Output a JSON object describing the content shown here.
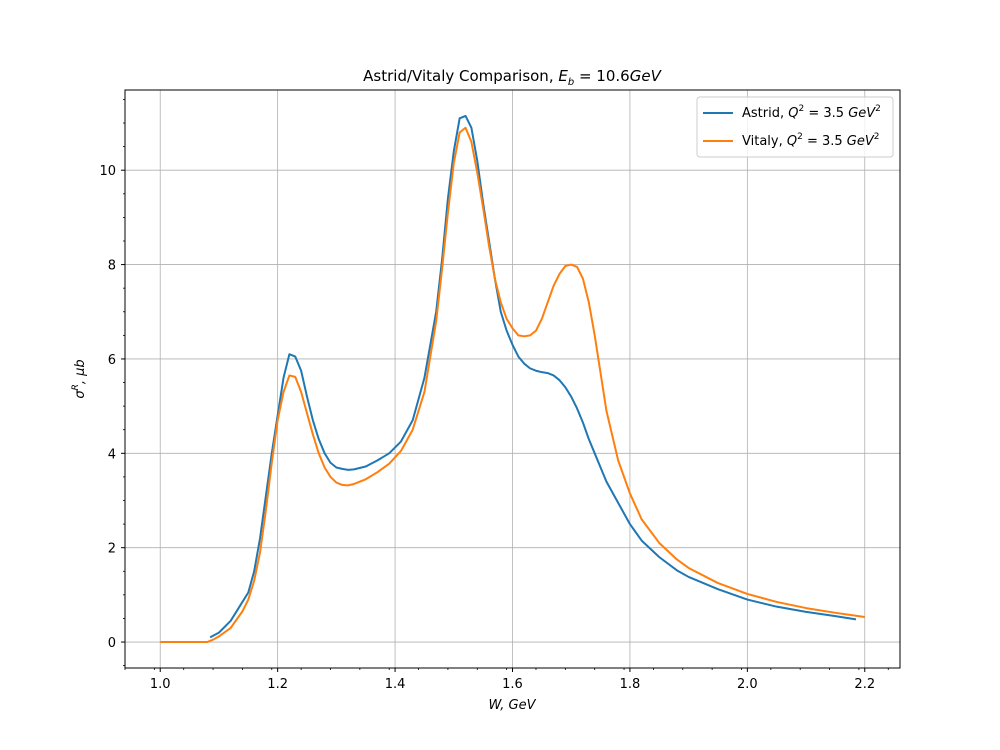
{
  "chart_data": {
    "type": "line",
    "title": "Astrid/Vitaly Comparison, E_b = 10.6GeV",
    "title_parts": {
      "prefix": "Astrid/Vitaly Comparison, ",
      "sym": "E",
      "sub": "b",
      "rest": " = 10.6",
      "unit": "GeV"
    },
    "xlabel": "W, GeV",
    "ylabel": "σ^R, μb",
    "xlim": [
      0.94,
      2.26
    ],
    "ylim": [
      -0.55,
      11.7
    ],
    "x_ticks": [
      1.0,
      1.2,
      1.4,
      1.6,
      1.8,
      2.0,
      2.2
    ],
    "x_tick_labels": [
      "1.0",
      "1.2",
      "1.4",
      "1.6",
      "1.8",
      "2.0",
      "2.2"
    ],
    "y_ticks": [
      0,
      2,
      4,
      6,
      8,
      10
    ],
    "y_tick_labels": [
      "0",
      "2",
      "4",
      "6",
      "8",
      "10"
    ],
    "grid": true,
    "legend_position": "top-right",
    "series": [
      {
        "name": "Astrid, Q^2 = 3.5 GeV^2",
        "legend_prefix": "Astrid, ",
        "color": "#1f77b4",
        "points": [
          [
            1.085,
            0.1
          ],
          [
            1.1,
            0.2
          ],
          [
            1.12,
            0.45
          ],
          [
            1.14,
            0.85
          ],
          [
            1.15,
            1.05
          ],
          [
            1.16,
            1.5
          ],
          [
            1.17,
            2.2
          ],
          [
            1.18,
            3.1
          ],
          [
            1.19,
            4.0
          ],
          [
            1.2,
            4.8
          ],
          [
            1.21,
            5.6
          ],
          [
            1.22,
            6.1
          ],
          [
            1.23,
            6.05
          ],
          [
            1.24,
            5.75
          ],
          [
            1.25,
            5.2
          ],
          [
            1.26,
            4.7
          ],
          [
            1.27,
            4.3
          ],
          [
            1.28,
            4.0
          ],
          [
            1.29,
            3.8
          ],
          [
            1.3,
            3.7
          ],
          [
            1.31,
            3.67
          ],
          [
            1.32,
            3.65
          ],
          [
            1.33,
            3.66
          ],
          [
            1.35,
            3.72
          ],
          [
            1.37,
            3.85
          ],
          [
            1.39,
            4.0
          ],
          [
            1.41,
            4.25
          ],
          [
            1.43,
            4.7
          ],
          [
            1.45,
            5.6
          ],
          [
            1.47,
            7.0
          ],
          [
            1.48,
            8.1
          ],
          [
            1.49,
            9.4
          ],
          [
            1.5,
            10.4
          ],
          [
            1.51,
            11.1
          ],
          [
            1.52,
            11.15
          ],
          [
            1.53,
            10.9
          ],
          [
            1.54,
            10.2
          ],
          [
            1.55,
            9.3
          ],
          [
            1.56,
            8.5
          ],
          [
            1.57,
            7.7
          ],
          [
            1.58,
            7.0
          ],
          [
            1.59,
            6.6
          ],
          [
            1.6,
            6.3
          ],
          [
            1.61,
            6.05
          ],
          [
            1.62,
            5.9
          ],
          [
            1.63,
            5.8
          ],
          [
            1.64,
            5.75
          ],
          [
            1.65,
            5.72
          ],
          [
            1.66,
            5.7
          ],
          [
            1.67,
            5.65
          ],
          [
            1.68,
            5.55
          ],
          [
            1.69,
            5.4
          ],
          [
            1.7,
            5.2
          ],
          [
            1.71,
            4.95
          ],
          [
            1.72,
            4.65
          ],
          [
            1.73,
            4.3
          ],
          [
            1.74,
            4.0
          ],
          [
            1.75,
            3.7
          ],
          [
            1.76,
            3.4
          ],
          [
            1.78,
            2.95
          ],
          [
            1.8,
            2.5
          ],
          [
            1.82,
            2.15
          ],
          [
            1.85,
            1.8
          ],
          [
            1.88,
            1.52
          ],
          [
            1.9,
            1.38
          ],
          [
            1.95,
            1.12
          ],
          [
            2.0,
            0.9
          ],
          [
            2.05,
            0.75
          ],
          [
            2.1,
            0.64
          ],
          [
            2.15,
            0.55
          ],
          [
            2.185,
            0.48
          ]
        ]
      },
      {
        "name": "Vitaly, Q^2 = 3.5 GeV^2",
        "legend_prefix": "Vitaly, ",
        "color": "#ff7f0e",
        "points": [
          [
            1.0,
            0.0
          ],
          [
            1.08,
            0.0
          ],
          [
            1.09,
            0.05
          ],
          [
            1.1,
            0.12
          ],
          [
            1.12,
            0.3
          ],
          [
            1.14,
            0.65
          ],
          [
            1.15,
            0.9
          ],
          [
            1.16,
            1.3
          ],
          [
            1.17,
            1.9
          ],
          [
            1.18,
            2.8
          ],
          [
            1.19,
            3.8
          ],
          [
            1.2,
            4.7
          ],
          [
            1.21,
            5.3
          ],
          [
            1.22,
            5.65
          ],
          [
            1.23,
            5.62
          ],
          [
            1.24,
            5.3
          ],
          [
            1.25,
            4.85
          ],
          [
            1.26,
            4.4
          ],
          [
            1.27,
            4.0
          ],
          [
            1.28,
            3.7
          ],
          [
            1.29,
            3.5
          ],
          [
            1.3,
            3.38
          ],
          [
            1.31,
            3.33
          ],
          [
            1.32,
            3.32
          ],
          [
            1.33,
            3.35
          ],
          [
            1.35,
            3.45
          ],
          [
            1.37,
            3.6
          ],
          [
            1.39,
            3.78
          ],
          [
            1.41,
            4.05
          ],
          [
            1.43,
            4.5
          ],
          [
            1.45,
            5.3
          ],
          [
            1.47,
            6.8
          ],
          [
            1.48,
            7.9
          ],
          [
            1.49,
            9.1
          ],
          [
            1.5,
            10.15
          ],
          [
            1.51,
            10.8
          ],
          [
            1.52,
            10.9
          ],
          [
            1.53,
            10.6
          ],
          [
            1.54,
            9.95
          ],
          [
            1.55,
            9.2
          ],
          [
            1.56,
            8.4
          ],
          [
            1.57,
            7.7
          ],
          [
            1.58,
            7.2
          ],
          [
            1.59,
            6.85
          ],
          [
            1.6,
            6.65
          ],
          [
            1.61,
            6.5
          ],
          [
            1.62,
            6.48
          ],
          [
            1.63,
            6.5
          ],
          [
            1.64,
            6.6
          ],
          [
            1.65,
            6.85
          ],
          [
            1.66,
            7.2
          ],
          [
            1.67,
            7.55
          ],
          [
            1.68,
            7.8
          ],
          [
            1.69,
            7.97
          ],
          [
            1.7,
            8.0
          ],
          [
            1.71,
            7.95
          ],
          [
            1.72,
            7.7
          ],
          [
            1.73,
            7.2
          ],
          [
            1.74,
            6.5
          ],
          [
            1.75,
            5.7
          ],
          [
            1.76,
            4.9
          ],
          [
            1.78,
            3.85
          ],
          [
            1.8,
            3.15
          ],
          [
            1.82,
            2.6
          ],
          [
            1.85,
            2.1
          ],
          [
            1.88,
            1.75
          ],
          [
            1.9,
            1.57
          ],
          [
            1.95,
            1.25
          ],
          [
            2.0,
            1.02
          ],
          [
            2.05,
            0.85
          ],
          [
            2.1,
            0.72
          ],
          [
            2.15,
            0.62
          ],
          [
            2.2,
            0.53
          ]
        ]
      }
    ]
  }
}
